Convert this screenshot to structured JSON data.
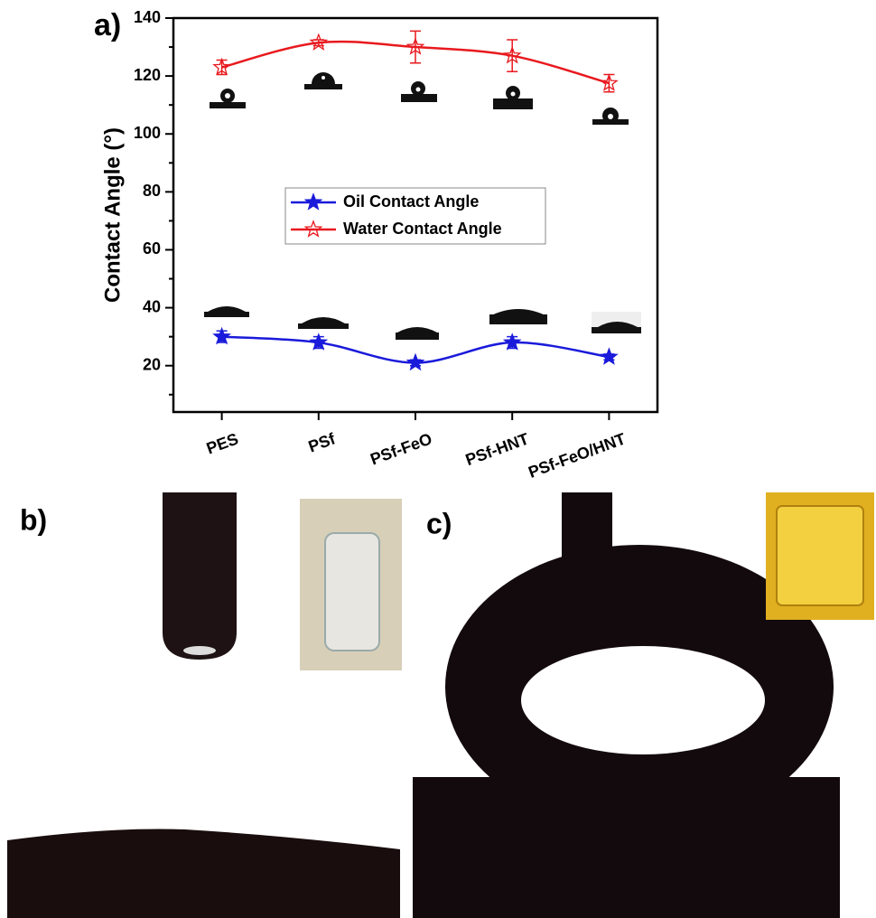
{
  "chart_data": {
    "type": "line",
    "panel_label": "a)",
    "y_label": "Contact Angle (°)",
    "categories": [
      "PES",
      "PSf",
      "PSf-FeO",
      "PSf-HNT",
      "PSf-FeO/HNT"
    ],
    "series": [
      {
        "name": "Oil Contact Angle",
        "color": "#1a1adb",
        "marker": "filled-star",
        "values": [
          30,
          28,
          21,
          28,
          23
        ],
        "errors": [
          2,
          2,
          1,
          2,
          1
        ]
      },
      {
        "name": "Water Contact Angle",
        "color": "#e8191e",
        "marker": "open-star",
        "values": [
          123,
          131.5,
          130,
          127,
          117.5
        ],
        "errors": [
          2.5,
          1,
          5.5,
          5.5,
          3
        ]
      }
    ],
    "ylim": [
      4,
      140
    ],
    "yticks": [
      20,
      40,
      60,
      80,
      100,
      120,
      140
    ],
    "yticks_minor": [
      10,
      30,
      50,
      70,
      90,
      110,
      130
    ],
    "smooth": true,
    "legend": "center"
  },
  "photos": [
    {
      "label": "b)"
    },
    {
      "label": "c)"
    }
  ]
}
